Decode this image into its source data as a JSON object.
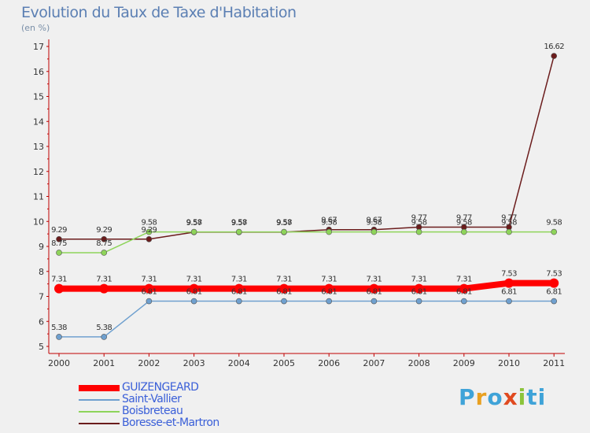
{
  "chart_data": {
    "type": "line",
    "title": "Evolution du Taux de Taxe d'Habitation",
    "subtitle": "(en %)",
    "categories": [
      "2000",
      "2001",
      "2002",
      "2003",
      "2004",
      "2005",
      "2006",
      "2007",
      "2008",
      "2009",
      "2010",
      "2011"
    ],
    "ylim": [
      5,
      17
    ],
    "yticks": [
      5,
      6,
      7,
      8,
      9,
      10,
      11,
      12,
      13,
      14,
      15,
      16,
      17
    ],
    "grid": false,
    "legend_position": "bottom-left",
    "series": [
      {
        "name": "GUIZENGEARD",
        "color": "#ff0000",
        "values": [
          7.31,
          7.31,
          7.31,
          7.31,
          7.31,
          7.31,
          7.31,
          7.31,
          7.31,
          7.31,
          7.53,
          7.53
        ],
        "labels": [
          "7.31",
          "7.31",
          "7.31",
          "7.31",
          "7.31",
          "7.31",
          "7.31",
          "7.31",
          "7.31",
          "7.31",
          "7.53",
          "7.53"
        ]
      },
      {
        "name": "Saint-Vallier",
        "color": "#6fa0cf",
        "values": [
          5.38,
          5.38,
          6.81,
          6.81,
          6.81,
          6.81,
          6.81,
          6.81,
          6.81,
          6.81,
          6.81,
          6.81
        ],
        "labels": [
          "5.38",
          "5.38",
          "6.81",
          "6.81",
          "6.81",
          "6.81",
          "6.81",
          "6.81",
          "6.81",
          "6.81",
          "6.81",
          "6.81"
        ]
      },
      {
        "name": "Boisbreteau",
        "color": "#8ed45a",
        "values": [
          8.75,
          8.75,
          9.58,
          9.58,
          9.58,
          9.58,
          9.58,
          9.58,
          9.58,
          9.58,
          9.58,
          9.58
        ],
        "labels": [
          "8.75",
          "8.75",
          "9.58",
          "9.58",
          "9.58",
          "9.58",
          "9.58",
          "9.58",
          "9.58",
          "9.58",
          "9.58",
          "9.58"
        ]
      },
      {
        "name": "Boresse-et-Martron",
        "color": "#6b1c1c",
        "values": [
          9.29,
          9.29,
          9.29,
          9.57,
          9.57,
          9.57,
          9.67,
          9.67,
          9.77,
          9.77,
          9.77,
          16.62
        ],
        "labels": [
          "9.29",
          "9.29",
          "9.29",
          "9.57",
          "9.57",
          "9.57",
          "9.67",
          "9.67",
          "9.77",
          "9.77",
          "9.77",
          "16.62"
        ]
      }
    ]
  },
  "logo": {
    "letters": [
      "P",
      "r",
      "o",
      "x",
      "i",
      "ti"
    ]
  }
}
